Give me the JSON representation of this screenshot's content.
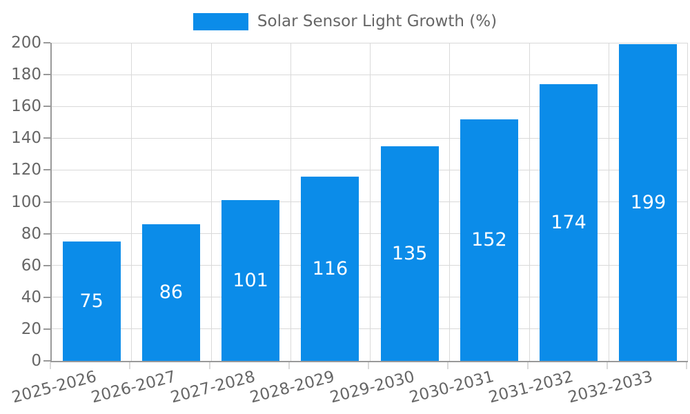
{
  "chart_data": {
    "type": "bar",
    "title": "Solar Sensor Light Growth (%)",
    "categories": [
      "2025-2026",
      "2026-2027",
      "2027-2028",
      "2028-2029",
      "2029-2030",
      "2030-2031",
      "2031-2032",
      "2032-2033"
    ],
    "values": [
      75,
      86,
      101,
      116,
      135,
      152,
      174,
      199
    ],
    "xlabel": "",
    "ylabel": "",
    "ylim": [
      0,
      200
    ],
    "ytick_step": 20,
    "ytick_labels": [
      "0",
      "20",
      "40",
      "60",
      "80",
      "100",
      "120",
      "140",
      "160",
      "180",
      "200"
    ],
    "grid": true,
    "legend_position": "top-center",
    "bar_color": "#0b8ce9",
    "bar_label_color": "#ffffff",
    "axis_text_color": "#666666",
    "grid_color": "#d9d9d9",
    "axis_line_color": "#999999",
    "background_color": "#ffffff"
  }
}
